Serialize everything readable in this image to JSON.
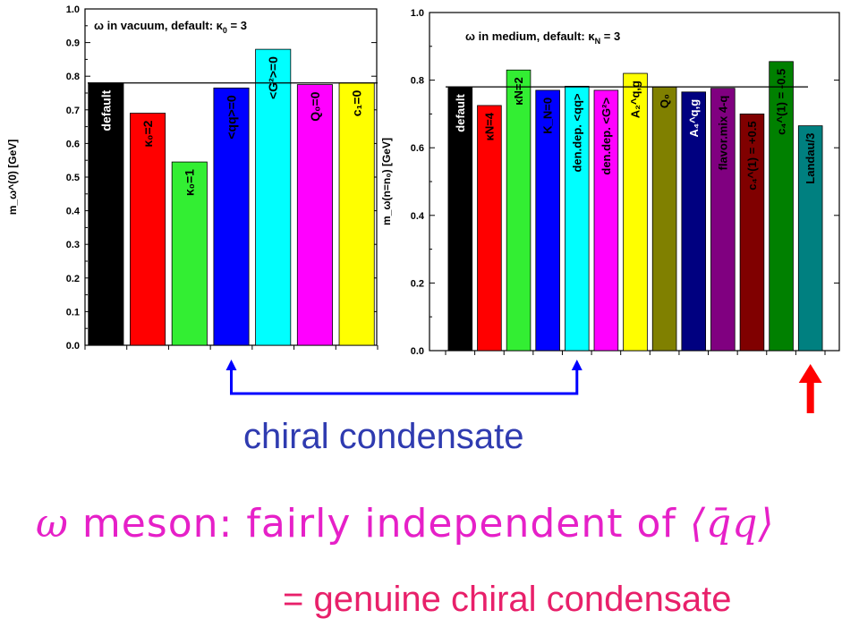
{
  "chart_data": [
    {
      "type": "bar",
      "title_prefix": "ω in vacuum, default: κ",
      "title_sub": "0",
      "title_suffix": " = 3",
      "ylabel": "m_ω^(0) [GeV]",
      "ylim": [
        0.0,
        1.0
      ],
      "yticks": [
        "0.0",
        "0.1",
        "0.2",
        "0.3",
        "0.4",
        "0.5",
        "0.6",
        "0.7",
        "0.8",
        "0.9",
        "1.0"
      ],
      "reference_line": 0.78,
      "bars": [
        {
          "label": "default",
          "value": 0.78,
          "color": "#000000",
          "text_color": "#ffffff"
        },
        {
          "label": "κ₀=2",
          "value": 0.69,
          "color": "#ff0000",
          "text_color": "#000000"
        },
        {
          "label": "κ₀=1",
          "value": 0.545,
          "color": "#33ee33",
          "text_color": "#000000"
        },
        {
          "label": "<qq>=0",
          "value": 0.765,
          "color": "#0000ff",
          "text_color": "#000000"
        },
        {
          "label": "<G²>=0",
          "value": 0.88,
          "color": "#00ffff",
          "text_color": "#000000"
        },
        {
          "label": "Q₀=0",
          "value": 0.775,
          "color": "#ff00ff",
          "text_color": "#000000"
        },
        {
          "label": "c₁=0",
          "value": 0.78,
          "color": "#ffff00",
          "text_color": "#000000"
        }
      ]
    },
    {
      "type": "bar",
      "title_prefix": "ω in medium, default: κ",
      "title_sub": "N",
      "title_suffix": " = 3",
      "ylabel": "m_ω(n=n₀) [GeV]",
      "ylim": [
        0.0,
        1.0
      ],
      "yticks": [
        "0.0",
        "0.2",
        "0.4",
        "0.6",
        "0.8",
        "1.0"
      ],
      "reference_line": 0.78,
      "bars": [
        {
          "label": "default",
          "value": 0.78,
          "color": "#000000",
          "text_color": "#ffffff"
        },
        {
          "label": "κN=4",
          "value": 0.725,
          "color": "#ff0000",
          "text_color": "#000000"
        },
        {
          "label": "κN=2",
          "value": 0.83,
          "color": "#33ee33",
          "text_color": "#000000"
        },
        {
          "label": "K_N=0",
          "value": 0.77,
          "color": "#0000ff",
          "text_color": "#000000"
        },
        {
          "label": "den.dep. <qq>",
          "value": 0.782,
          "color": "#00ffff",
          "text_color": "#000000"
        },
        {
          "label": "den.dep. <G²>",
          "value": 0.77,
          "color": "#ff00ff",
          "text_color": "#000000"
        },
        {
          "label": "A₂^q,g",
          "value": 0.82,
          "color": "#ffff00",
          "text_color": "#000000"
        },
        {
          "label": "Q₀",
          "value": 0.78,
          "color": "#808000",
          "text_color": "#000000"
        },
        {
          "label": "A₄^q,g",
          "value": 0.765,
          "color": "#000080",
          "text_color": "#ffffff"
        },
        {
          "label": "flavor.mix 4-q",
          "value": 0.776,
          "color": "#800080",
          "text_color": "#000000"
        },
        {
          "label": "c₄^(1) = +0.5",
          "value": 0.7,
          "color": "#800000",
          "text_color": "#000000"
        },
        {
          "label": "c₄^(1) = -0.5",
          "value": 0.855,
          "color": "#008000",
          "text_color": "#000000"
        },
        {
          "label": "Landau/3",
          "value": 0.665,
          "color": "#008080",
          "text_color": "#000000"
        }
      ]
    }
  ],
  "annotations": {
    "connector_color": "#0000ff",
    "arrow_color": "#ff0000",
    "caption": "chiral condensate",
    "headline_omega": "ω",
    "headline_text": " meson: fairly independent of ",
    "headline_qq": "⟨q̄q⟩",
    "subline": "= genuine chiral condensate"
  }
}
